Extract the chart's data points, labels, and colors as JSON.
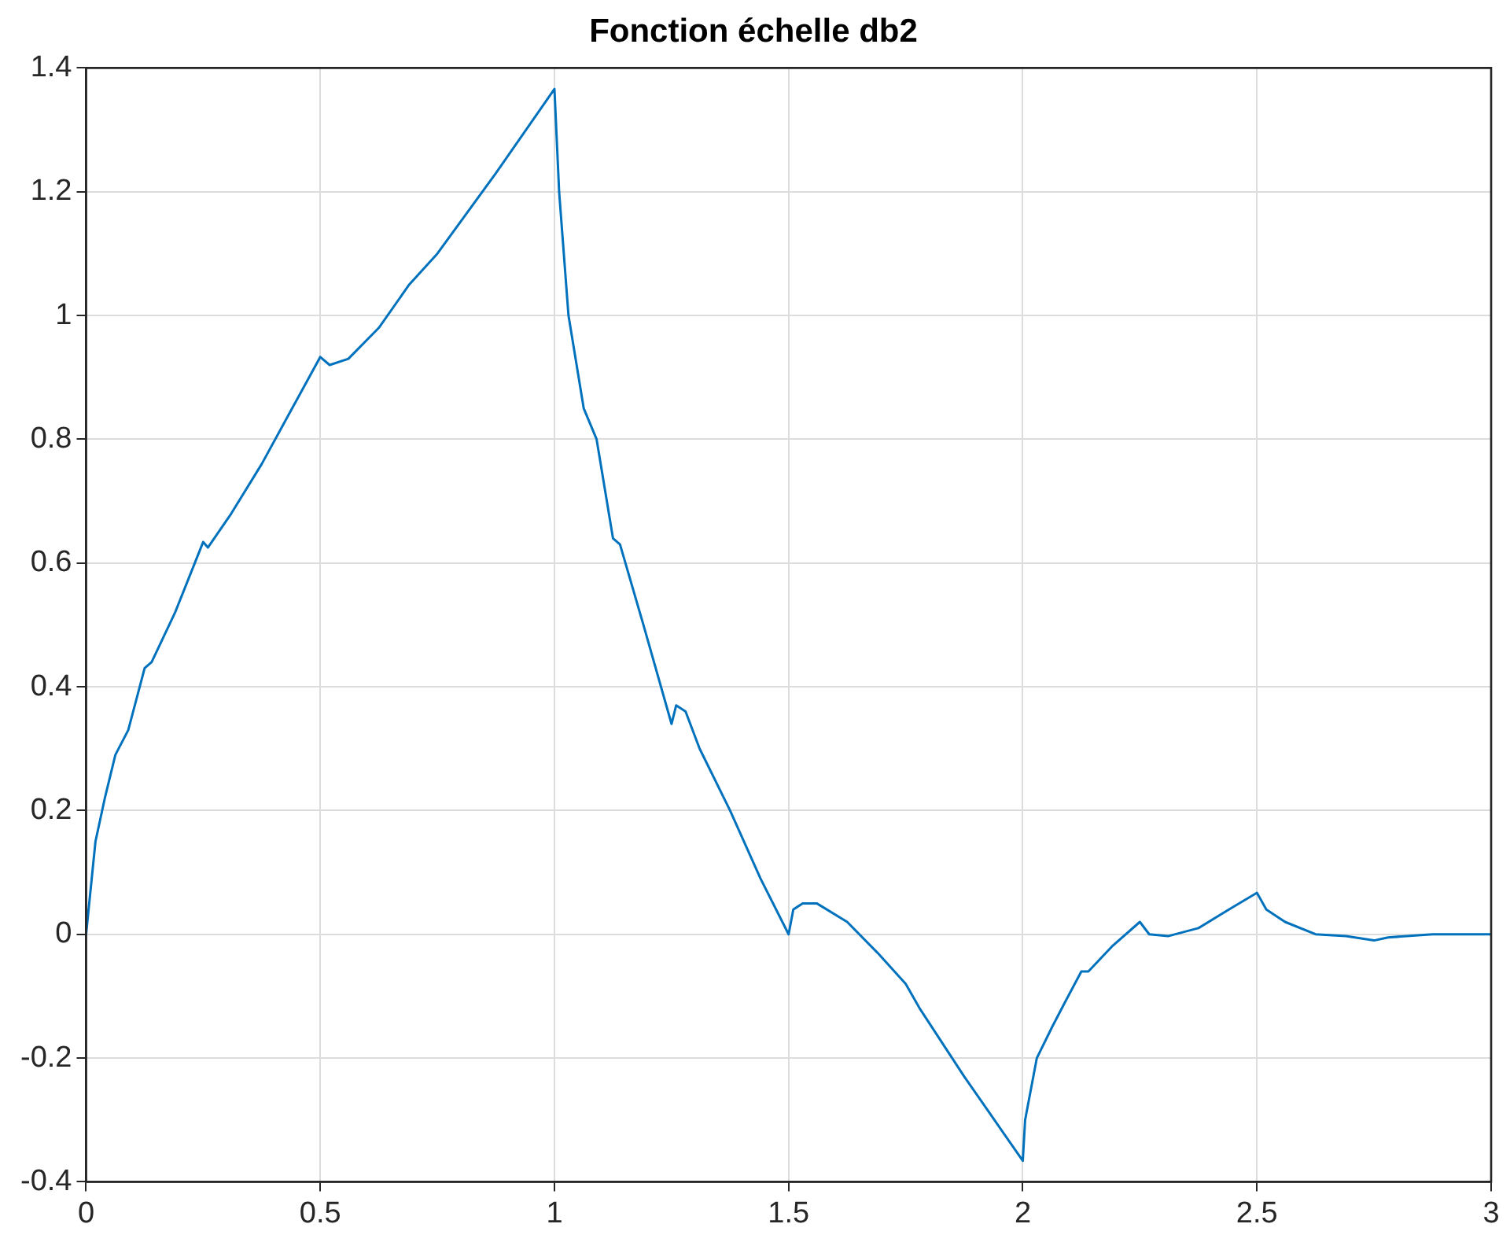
{
  "chart_data": {
    "type": "line",
    "title": "Fonction échelle db2",
    "x": [
      0,
      0.02,
      0.04,
      0.0625,
      0.09,
      0.125,
      0.14,
      0.19,
      0.25,
      0.26,
      0.31,
      0.375,
      0.44,
      0.5,
      0.52,
      0.56,
      0.625,
      0.69,
      0.75,
      0.875,
      1,
      1.01,
      1.03,
      1.0625,
      1.09,
      1.125,
      1.14,
      1.19,
      1.25,
      1.26,
      1.28,
      1.31,
      1.375,
      1.44,
      1.5,
      1.51,
      1.53,
      1.56,
      1.625,
      1.69,
      1.75,
      1.78,
      1.875,
      2,
      2.005,
      2.03,
      2.0625,
      2.09,
      2.125,
      2.14,
      2.19,
      2.25,
      2.27,
      2.31,
      2.375,
      2.44,
      2.5,
      2.52,
      2.56,
      2.625,
      2.69,
      2.75,
      2.78,
      2.875,
      3
    ],
    "series": [
      {
        "color": "#0072bd",
        "values": [
          0,
          0.15,
          0.22,
          0.29,
          0.33,
          0.43,
          0.44,
          0.52,
          0.634,
          0.625,
          0.68,
          0.76,
          0.85,
          0.933,
          0.92,
          0.93,
          0.98,
          1.05,
          1.1,
          1.23,
          1.366,
          1.2,
          1,
          0.85,
          0.8,
          0.64,
          0.63,
          0.5,
          0.34,
          0.37,
          0.36,
          0.3,
          0.2,
          0.09,
          0,
          0.04,
          0.05,
          0.05,
          0.02,
          -0.03,
          -0.08,
          -0.12,
          -0.23,
          -0.366,
          -0.3,
          -0.2,
          -0.15,
          -0.11,
          -0.06,
          -0.06,
          -0.02,
          0.02,
          0,
          -0.003,
          0.01,
          0.04,
          0.067,
          0.04,
          0.02,
          0,
          -0.003,
          -0.01,
          -0.005,
          0,
          0
        ]
      }
    ],
    "xlim": [
      0,
      3
    ],
    "xticks": [
      0,
      0.5,
      1,
      1.5,
      2,
      2.5,
      3
    ],
    "ylim": [
      -0.4,
      1.4
    ],
    "yticks": [
      -0.4,
      -0.2,
      0,
      0.2,
      0.4,
      0.6,
      0.8,
      1,
      1.2,
      1.4
    ],
    "grid": true,
    "legend": false,
    "marker": "none",
    "line_style": "solid"
  }
}
